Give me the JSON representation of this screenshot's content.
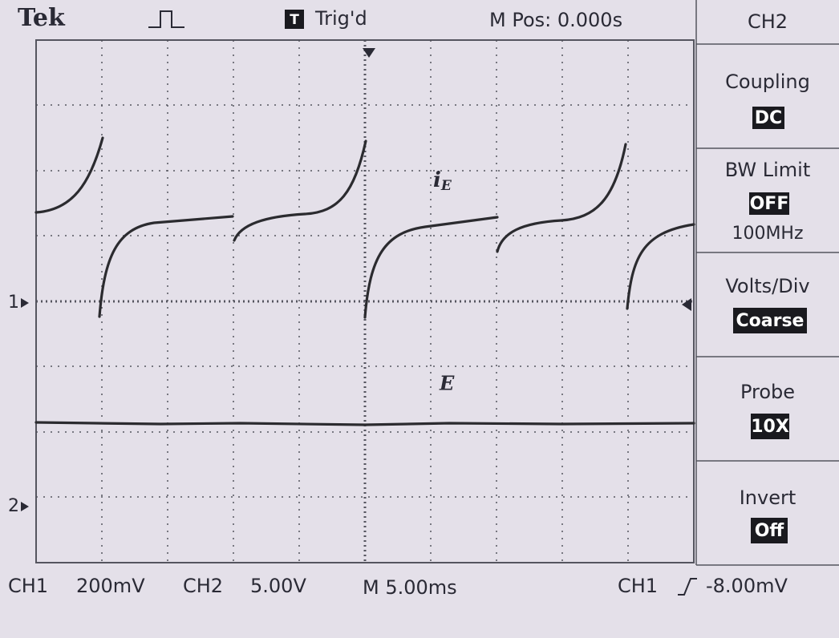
{
  "header": {
    "brand": "Tek",
    "trigger_status": "Trig'd",
    "position": "M Pos: 0.000s",
    "channel": "CH2"
  },
  "menu": [
    {
      "label": "Coupling",
      "value": "DC"
    },
    {
      "label": "BW Limit",
      "value": "OFF",
      "extra": "100MHz"
    },
    {
      "label": "Volts/Div",
      "value": "Coarse"
    },
    {
      "label": "Probe",
      "value": "10X"
    },
    {
      "label": "Invert",
      "value": "Off"
    }
  ],
  "footer": {
    "ch1": "CH1",
    "ch1_scale": "200mV",
    "ch2": "CH2",
    "ch2_scale": "5.00V",
    "timebase": "M 5.00ms",
    "trigger_source": "CH1",
    "trigger_level": "-8.00mV"
  },
  "markers": {
    "ch1": "1",
    "ch2": "2"
  },
  "labels": {
    "ie_main": "i",
    "ie_sub": "E",
    "e": "E"
  }
}
